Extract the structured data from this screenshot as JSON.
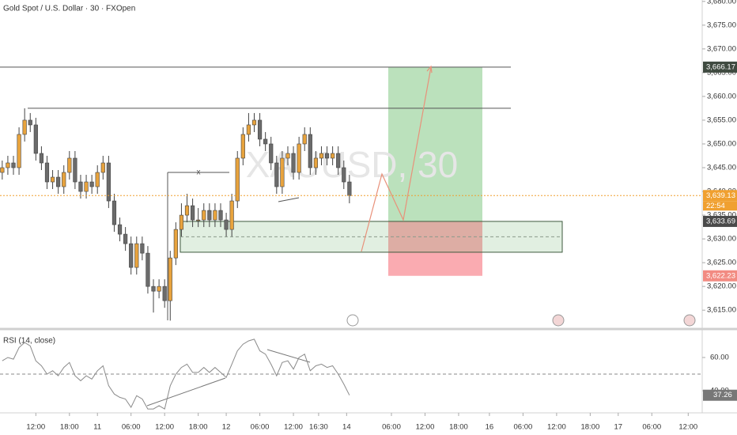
{
  "chart_data": {
    "type": "candlestick",
    "title": "Gold Spot / U.S. Dollar · 30 · FXOpen",
    "watermark": "XAUUSD, 30",
    "measure_label": "x",
    "up_color": "#e8a33d",
    "down_color": "#6b6b6b",
    "open": [
      3644,
      3645,
      3646,
      3645,
      3652,
      3655,
      3654,
      3648,
      3646,
      3642,
      3643,
      3641,
      3644,
      3647,
      3642,
      3640,
      3642,
      3641,
      3644,
      3646,
      3638,
      3633,
      3631,
      3629,
      3624,
      3629,
      3627,
      3620,
      3619,
      3620,
      3617,
      3626,
      3632,
      3635,
      3637,
      3634,
      3634,
      3636,
      3634,
      3636,
      3634,
      3632,
      3638,
      3647,
      3652,
      3654,
      3655,
      3651,
      3650,
      3646,
      3641,
      3647,
      3648,
      3644,
      3650,
      3652,
      3645,
      3647,
      3648,
      3647,
      3648,
      3645,
      3642
    ],
    "high": [
      3646.5,
      3647.5,
      3647.5,
      3653.5,
      3657.5,
      3656.5,
      3655.5,
      3649.5,
      3647.5,
      3644.5,
      3644.5,
      3645.5,
      3648.5,
      3648.5,
      3643.5,
      3643.5,
      3643.5,
      3645.5,
      3647.5,
      3647.5,
      3639.5,
      3634.5,
      3632.5,
      3630.5,
      3630.5,
      3630.5,
      3628.5,
      3621.5,
      3621.5,
      3621.5,
      3627.5,
      3633.5,
      3637.5,
      3639.5,
      3638.5,
      3636.5,
      3637.5,
      3637.5,
      3637.5,
      3637.5,
      3635.5,
      3639.5,
      3648.5,
      3653.5,
      3656.5,
      3656.5,
      3656.5,
      3652.5,
      3651.5,
      3647.5,
      3648.5,
      3649.5,
      3649.5,
      3651.5,
      3653.5,
      3653.5,
      3648.5,
      3649.5,
      3649.5,
      3649.5,
      3649.5,
      3646.5,
      3643.5
    ],
    "low": [
      3642.5,
      3643.5,
      3643.5,
      3643.5,
      3650.5,
      3652.5,
      3646.5,
      3644.5,
      3640.5,
      3640.5,
      3639.5,
      3639.5,
      3642.5,
      3640.5,
      3638.5,
      3638.5,
      3639.5,
      3639.5,
      3642.5,
      3636.5,
      3631.5,
      3629.5,
      3627.5,
      3622.5,
      3622.5,
      3625.5,
      3618.5,
      3614.5,
      3617.5,
      3615.5,
      3612.8,
      3624.5,
      3630.5,
      3633.5,
      3632.5,
      3632.5,
      3632.5,
      3632.5,
      3632.5,
      3632.5,
      3630.5,
      3630.5,
      3636.5,
      3645.5,
      3650.5,
      3652.5,
      3649.5,
      3648.5,
      3644.5,
      3639.5,
      3639.5,
      3645.5,
      3642.5,
      3642.5,
      3648.5,
      3643.5,
      3643.5,
      3645.5,
      3645.5,
      3645.5,
      3643.5,
      3640.5,
      3637.5
    ],
    "close": [
      3645,
      3646,
      3645,
      3652,
      3655,
      3654,
      3648,
      3646,
      3642,
      3643,
      3641,
      3644,
      3647,
      3642,
      3640,
      3642,
      3641,
      3644,
      3646,
      3638,
      3633,
      3631,
      3629,
      3624,
      3629,
      3627,
      3620,
      3619,
      3620,
      3617,
      3626,
      3632,
      3635,
      3637,
      3634,
      3634,
      3636,
      3634,
      3636,
      3634,
      3632,
      3638,
      3647,
      3652,
      3654,
      3655,
      3651,
      3650,
      3646,
      3641,
      3647,
      3648,
      3644,
      3650,
      3652,
      3645,
      3647,
      3648,
      3647,
      3648,
      3645,
      3642,
      3639.13
    ],
    "xlim": [
      -0.4,
      125
    ],
    "xticks": [
      {
        "value": 6,
        "label": "12:00"
      },
      {
        "value": 12,
        "label": "18:00"
      },
      {
        "value": 17,
        "label": "11"
      },
      {
        "value": 23,
        "label": "06:00"
      },
      {
        "value": 29,
        "label": "12:00"
      },
      {
        "value": 35,
        "label": "18:00"
      },
      {
        "value": 40,
        "label": "12"
      },
      {
        "value": 46,
        "label": "06:00"
      },
      {
        "value": 52,
        "label": "12:00"
      },
      {
        "value": 56.5,
        "label": "16:30"
      },
      {
        "value": 61.5,
        "label": "14"
      },
      {
        "value": 69.5,
        "label": "06:00"
      },
      {
        "value": 75.5,
        "label": "12:00"
      },
      {
        "value": 81.5,
        "label": "18:00"
      },
      {
        "value": 87,
        "label": "16"
      },
      {
        "value": 93,
        "label": "06:00"
      },
      {
        "value": 99,
        "label": "12:00"
      },
      {
        "value": 105,
        "label": "18:00"
      },
      {
        "value": 110,
        "label": "17"
      },
      {
        "value": 116,
        "label": "06:00"
      },
      {
        "value": 122.5,
        "label": "12:00"
      }
    ],
    "ylim": [
      3611.2,
      3680.3
    ],
    "yticks": [
      {
        "value": 3615,
        "label": "3,615.00"
      },
      {
        "value": 3620,
        "label": "3,620.00"
      },
      {
        "value": 3625,
        "label": "3,625.00"
      },
      {
        "value": 3630,
        "label": "3,630.00"
      },
      {
        "value": 3635,
        "label": "3,635.00"
      },
      {
        "value": 3640,
        "label": "3,640.00"
      },
      {
        "value": 3645,
        "label": "3,645.00"
      },
      {
        "value": 3650,
        "label": "3,650.00"
      },
      {
        "value": 3655,
        "label": "3,655.00"
      },
      {
        "value": 3660,
        "label": "3,660.00"
      },
      {
        "value": 3665,
        "label": "3,665.00"
      },
      {
        "value": 3670,
        "label": "3,670.00"
      },
      {
        "value": 3675,
        "label": "3,675.00"
      },
      {
        "value": 3680,
        "label": "3,680.00"
      }
    ],
    "levels": [
      3666.17,
      3657.5
    ],
    "zone": [
      3627.2,
      3633.69
    ],
    "position": {
      "entry": 3633.69,
      "target": 3666.17,
      "stop": 3622.23
    },
    "price_labels": [
      {
        "value": 3666.17,
        "label": "3,666.17",
        "color": "#3f4a40"
      },
      {
        "value": 3639.13,
        "label": "3,639.13",
        "color": "#f0a030"
      },
      {
        "value": 3633.69,
        "label": "3,633.69",
        "color": "#4a4a4a"
      },
      {
        "value": 3622.23,
        "label": "3,622.23",
        "color": "#f28b82"
      }
    ],
    "countdown": "22:54",
    "rsi": {
      "title": "RSI (14, close)",
      "color": "#8a8a8a",
      "values": [
        58,
        60,
        59,
        66,
        69,
        67,
        58,
        55,
        50,
        52,
        49,
        54,
        57,
        49,
        46,
        49,
        47,
        52,
        55,
        43,
        38,
        36,
        35,
        30,
        37,
        35,
        29,
        29,
        31,
        29,
        43,
        50,
        54,
        56,
        51,
        51,
        54,
        51,
        54,
        51,
        48,
        56,
        64,
        68,
        70,
        71,
        64,
        62,
        56,
        49,
        57,
        58,
        53,
        60,
        62,
        52,
        55,
        56,
        54,
        55,
        50,
        44,
        37.26
      ],
      "ylim": [
        27.6,
        76.2
      ],
      "yticks": [
        {
          "value": 60,
          "label": "60.00"
        },
        {
          "value": 40,
          "label": "40.00"
        }
      ],
      "midline": 50
    }
  }
}
